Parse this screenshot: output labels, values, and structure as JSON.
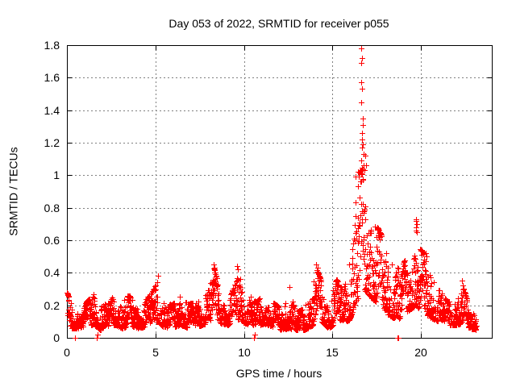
{
  "chart_data": {
    "type": "scatter",
    "title": "Day 053 of 2022, SRMTID for receiver p055",
    "xlabel": "GPS time / hours",
    "ylabel": "SRMTID / TECUs",
    "xlim": [
      0,
      24
    ],
    "ylim": [
      0,
      1.8
    ],
    "xticks": {
      "values": [
        0,
        5,
        10,
        15,
        20
      ],
      "labels": [
        "0",
        "5",
        "10",
        "15",
        "20"
      ]
    },
    "yticks": {
      "values": [
        0,
        0.2,
        0.4,
        0.6,
        0.8,
        1.0,
        1.2,
        1.4,
        1.6,
        1.8
      ],
      "labels": [
        "0",
        "0.2",
        "0.4",
        "0.6",
        "0.8",
        "1",
        "1.2",
        "1.4",
        "1.6",
        "1.8"
      ]
    },
    "grid": {
      "visible": true,
      "style": "dotted",
      "color": "#808080"
    },
    "axis_color": "#000000",
    "legend": {
      "visible": false
    },
    "render_seed": 20220053,
    "series": [
      {
        "name": "SRMTID",
        "marker": "plus",
        "color": "#ff0000",
        "sample_interval_hours": 0.008333,
        "time_range": [
          0.02,
          23.13
        ],
        "band_envelope": {
          "description": "Piecewise-linear [time_hours, min_TECU, max_TECU] envelope of the dense scatter band read from the plot",
          "points": [
            [
              0.0,
              0.07,
              0.28
            ],
            [
              0.3,
              0.06,
              0.22
            ],
            [
              0.7,
              0.06,
              0.18
            ],
            [
              1.1,
              0.07,
              0.22
            ],
            [
              1.5,
              0.08,
              0.28
            ],
            [
              1.9,
              0.05,
              0.24
            ],
            [
              2.3,
              0.07,
              0.2
            ],
            [
              2.7,
              0.08,
              0.28
            ],
            [
              3.1,
              0.06,
              0.24
            ],
            [
              3.5,
              0.07,
              0.26
            ],
            [
              4.0,
              0.06,
              0.2
            ],
            [
              4.5,
              0.07,
              0.24
            ],
            [
              4.9,
              0.09,
              0.3
            ],
            [
              5.15,
              0.1,
              0.36
            ],
            [
              5.4,
              0.07,
              0.24
            ],
            [
              5.9,
              0.06,
              0.2
            ],
            [
              6.4,
              0.08,
              0.26
            ],
            [
              6.9,
              0.06,
              0.21
            ],
            [
              7.4,
              0.07,
              0.22
            ],
            [
              7.9,
              0.09,
              0.28
            ],
            [
              8.3,
              0.11,
              0.43
            ],
            [
              8.7,
              0.09,
              0.26
            ],
            [
              9.1,
              0.08,
              0.22
            ],
            [
              9.45,
              0.1,
              0.32
            ],
            [
              9.65,
              0.11,
              0.43
            ],
            [
              9.9,
              0.1,
              0.33
            ],
            [
              10.3,
              0.08,
              0.26
            ],
            [
              10.7,
              0.06,
              0.22
            ],
            [
              11.1,
              0.09,
              0.27
            ],
            [
              11.6,
              0.07,
              0.22
            ],
            [
              12.1,
              0.05,
              0.18
            ],
            [
              12.55,
              0.06,
              0.3
            ],
            [
              12.9,
              0.04,
              0.16
            ],
            [
              13.4,
              0.05,
              0.18
            ],
            [
              13.8,
              0.07,
              0.28
            ],
            [
              14.1,
              0.1,
              0.42
            ],
            [
              14.45,
              0.09,
              0.33
            ],
            [
              14.8,
              0.06,
              0.2
            ],
            [
              15.2,
              0.09,
              0.36
            ],
            [
              15.6,
              0.09,
              0.3
            ],
            [
              15.95,
              0.11,
              0.42
            ],
            [
              16.2,
              0.18,
              0.75
            ],
            [
              16.45,
              0.25,
              1.0
            ],
            [
              16.7,
              0.3,
              1.05
            ],
            [
              16.95,
              0.28,
              1.0
            ],
            [
              17.15,
              0.25,
              0.85
            ],
            [
              17.45,
              0.22,
              0.7
            ],
            [
              17.8,
              0.18,
              0.62
            ],
            [
              18.15,
              0.14,
              0.52
            ],
            [
              18.5,
              0.12,
              0.46
            ],
            [
              18.8,
              0.1,
              0.42
            ],
            [
              19.1,
              0.14,
              0.48
            ],
            [
              19.45,
              0.18,
              0.55
            ],
            [
              19.7,
              0.2,
              0.68
            ],
            [
              19.95,
              0.17,
              0.55
            ],
            [
              20.25,
              0.14,
              0.5
            ],
            [
              20.6,
              0.12,
              0.42
            ],
            [
              21.0,
              0.1,
              0.3
            ],
            [
              21.5,
              0.08,
              0.22
            ],
            [
              22.0,
              0.08,
              0.24
            ],
            [
              22.35,
              0.09,
              0.32
            ],
            [
              22.7,
              0.06,
              0.2
            ],
            [
              23.13,
              0.05,
              0.17
            ]
          ]
        },
        "outlier_points": {
          "description": "Explicit [time_hours, TECU] points visible outside the dense band, including the 1.78 TECU spike at ~16.7 h and near-zero dropouts",
          "points": [
            [
              0.45,
              0.0
            ],
            [
              1.68,
              0.0
            ],
            [
              1.74,
              0.02
            ],
            [
              10.55,
              0.0
            ],
            [
              10.62,
              0.02
            ],
            [
              18.68,
              0.0
            ],
            [
              18.74,
              0.0
            ],
            [
              5.15,
              0.38
            ],
            [
              8.28,
              0.45
            ],
            [
              8.33,
              0.43
            ],
            [
              9.63,
              0.44
            ],
            [
              9.67,
              0.42
            ],
            [
              12.55,
              0.31
            ],
            [
              14.08,
              0.45
            ],
            [
              14.15,
              0.43
            ],
            [
              15.93,
              0.45
            ],
            [
              16.3,
              0.99
            ],
            [
              16.45,
              1.02
            ],
            [
              16.6,
              1.09
            ],
            [
              16.61,
              1.45
            ],
            [
              16.62,
              1.78
            ],
            [
              16.63,
              1.57
            ],
            [
              16.64,
              1.69
            ],
            [
              16.65,
              1.26
            ],
            [
              16.66,
              1.72
            ],
            [
              16.67,
              1.53
            ],
            [
              16.68,
              1.22
            ],
            [
              16.69,
              1.17
            ],
            [
              16.7,
              1.35
            ],
            [
              16.71,
              1.19
            ],
            [
              16.72,
              1.31
            ],
            [
              16.74,
              1.13
            ],
            [
              16.76,
              1.06
            ],
            [
              16.81,
              1.03
            ],
            [
              16.86,
              1.12
            ],
            [
              16.9,
              1.06
            ],
            [
              19.7,
              0.73
            ],
            [
              19.73,
              0.72
            ],
            [
              19.76,
              0.7
            ],
            [
              19.71,
              0.68
            ],
            [
              19.74,
              0.66
            ],
            [
              19.77,
              0.65
            ],
            [
              20.28,
              0.52
            ],
            [
              20.32,
              0.5
            ],
            [
              20.25,
              0.47
            ],
            [
              22.3,
              0.35
            ],
            [
              22.34,
              0.32
            ]
          ]
        }
      }
    ]
  }
}
